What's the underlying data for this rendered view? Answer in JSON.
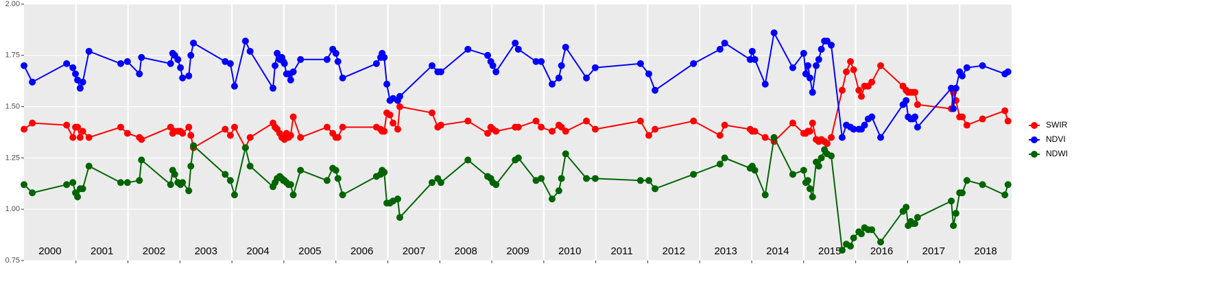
{
  "chart_data": {
    "type": "line",
    "xlim": [
      2000,
      2019
    ],
    "xticks": [
      2001,
      2002,
      2003,
      2004,
      2005,
      2006,
      2007,
      2008,
      2009,
      2010,
      2011,
      2012,
      2013,
      2014,
      2015,
      2016,
      2017,
      2018
    ],
    "year_labels": [
      "2000",
      "2001",
      "2002",
      "2003",
      "2004",
      "2005",
      "2006",
      "2007",
      "2008",
      "2009",
      "2010",
      "2011",
      "2012",
      "2013",
      "2014",
      "2015",
      "2016",
      "2017",
      "2018"
    ],
    "ylim": [
      0.75,
      2.0
    ],
    "yticks": [
      {
        "value": 0.75,
        "label": "0.75"
      },
      {
        "value": 1,
        "label": "1.00"
      },
      {
        "value": 1.25,
        "label": "1.25"
      },
      {
        "value": 1.5,
        "label": "1.50"
      },
      {
        "value": 1.75,
        "label": "1.75"
      },
      {
        "value": 2,
        "label": "2.00"
      }
    ],
    "grid": true,
    "legend": "right",
    "x": [
      2000.0,
      2000.16,
      2000.82,
      2000.94,
      2000.99,
      2001.03,
      2001.08,
      2001.13,
      2001.25,
      2001.86,
      2001.99,
      2002.22,
      2002.26,
      2002.82,
      2002.86,
      2002.9,
      2002.96,
      2003.01,
      2003.05,
      2003.17,
      2003.21,
      2003.26,
      2003.87,
      2003.97,
      2004.05,
      2004.26,
      2004.35,
      2004.79,
      2004.83,
      2004.87,
      2004.92,
      2004.96,
      2004.99,
      2005.01,
      2005.05,
      2005.09,
      2005.13,
      2005.18,
      2005.32,
      2005.83,
      2005.94,
      2006.0,
      2006.04,
      2006.13,
      2006.78,
      2006.86,
      2006.89,
      2006.93,
      2006.98,
      2007.04,
      2007.1,
      2007.19,
      2007.23,
      2007.85,
      2007.96,
      2008.02,
      2008.54,
      2008.92,
      2008.98,
      2009.02,
      2009.08,
      2009.45,
      2009.51,
      2009.85,
      2009.95,
      2010.16,
      2010.29,
      2010.34,
      2010.42,
      2010.82,
      2010.99,
      2011.86,
      2012.02,
      2012.14,
      2012.88,
      2013.39,
      2013.48,
      2013.97,
      2014.01,
      2014.06,
      2014.26,
      2014.43,
      2014.79,
      2015.0,
      2015.04,
      2015.08,
      2015.12,
      2015.17,
      2015.24,
      2015.29,
      2015.34,
      2015.4,
      2015.45,
      2015.53,
      2015.74,
      2015.82,
      2015.9,
      2015.96,
      2016.06,
      2016.11,
      2016.17,
      2016.24,
      2016.31,
      2016.48,
      2016.91,
      2016.97,
      2017.01,
      2017.06,
      2017.1,
      2017.14,
      2017.19,
      2017.84,
      2017.88,
      2017.93,
      2018.0,
      2018.05,
      2018.14,
      2018.44,
      2018.87,
      2018.93
    ],
    "series": [
      {
        "name": "SWIR",
        "color": "#ff0000",
        "values": [
          1.39,
          1.42,
          1.41,
          1.35,
          1.4,
          1.4,
          1.35,
          1.38,
          1.35,
          1.4,
          1.37,
          1.35,
          1.34,
          1.4,
          1.37,
          1.38,
          1.38,
          1.38,
          1.37,
          1.4,
          1.36,
          1.3,
          1.39,
          1.36,
          1.4,
          1.3,
          1.35,
          1.42,
          1.4,
          1.39,
          1.37,
          1.35,
          1.35,
          1.34,
          1.37,
          1.35,
          1.36,
          1.45,
          1.35,
          1.4,
          1.37,
          1.35,
          1.35,
          1.4,
          1.4,
          1.39,
          1.38,
          1.38,
          1.47,
          1.46,
          1.42,
          1.39,
          1.5,
          1.47,
          1.4,
          1.41,
          1.43,
          1.37,
          1.4,
          1.39,
          1.38,
          1.4,
          1.4,
          1.43,
          1.4,
          1.38,
          1.41,
          1.4,
          1.38,
          1.43,
          1.39,
          1.43,
          1.36,
          1.39,
          1.43,
          1.36,
          1.41,
          1.39,
          1.38,
          1.38,
          1.35,
          1.33,
          1.42,
          1.37,
          1.37,
          1.38,
          1.38,
          1.42,
          1.34,
          1.33,
          1.34,
          1.33,
          1.32,
          1.35,
          1.58,
          1.67,
          1.72,
          1.68,
          1.58,
          1.55,
          1.6,
          1.6,
          1.62,
          1.7,
          1.6,
          1.58,
          1.57,
          1.57,
          1.57,
          1.57,
          1.51,
          1.49,
          1.57,
          1.53,
          1.45,
          1.45,
          1.41,
          1.44,
          1.48,
          1.43
        ]
      },
      {
        "name": "NDVI",
        "color": "#0000ff",
        "values": [
          1.7,
          1.62,
          1.71,
          1.69,
          1.66,
          1.63,
          1.59,
          1.62,
          1.77,
          1.71,
          1.72,
          1.66,
          1.74,
          1.71,
          1.76,
          1.75,
          1.73,
          1.69,
          1.64,
          1.65,
          1.75,
          1.81,
          1.72,
          1.71,
          1.6,
          1.82,
          1.77,
          1.59,
          1.7,
          1.76,
          1.73,
          1.74,
          1.72,
          1.71,
          1.66,
          1.66,
          1.63,
          1.67,
          1.73,
          1.73,
          1.78,
          1.76,
          1.72,
          1.64,
          1.71,
          1.74,
          1.76,
          1.74,
          1.61,
          1.53,
          1.54,
          1.53,
          1.55,
          1.7,
          1.67,
          1.67,
          1.78,
          1.75,
          1.72,
          1.7,
          1.67,
          1.81,
          1.78,
          1.72,
          1.72,
          1.61,
          1.64,
          1.7,
          1.79,
          1.64,
          1.69,
          1.71,
          1.66,
          1.58,
          1.71,
          1.78,
          1.81,
          1.73,
          1.77,
          1.73,
          1.61,
          1.86,
          1.69,
          1.76,
          1.66,
          1.7,
          1.64,
          1.57,
          1.7,
          1.73,
          1.78,
          1.82,
          1.82,
          1.8,
          1.35,
          1.41,
          1.4,
          1.39,
          1.39,
          1.39,
          1.41,
          1.44,
          1.45,
          1.35,
          1.51,
          1.53,
          1.45,
          1.44,
          1.44,
          1.45,
          1.4,
          1.59,
          1.49,
          1.59,
          1.67,
          1.65,
          1.69,
          1.7,
          1.66,
          1.67
        ]
      },
      {
        "name": "NDWI",
        "color": "#006400",
        "values": [
          1.12,
          1.08,
          1.12,
          1.13,
          1.08,
          1.06,
          1.1,
          1.1,
          1.21,
          1.13,
          1.13,
          1.14,
          1.24,
          1.12,
          1.19,
          1.17,
          1.13,
          1.12,
          1.13,
          1.09,
          1.21,
          1.31,
          1.17,
          1.14,
          1.07,
          1.3,
          1.21,
          1.11,
          1.13,
          1.15,
          1.16,
          1.15,
          1.14,
          1.14,
          1.13,
          1.12,
          1.12,
          1.07,
          1.19,
          1.14,
          1.2,
          1.19,
          1.15,
          1.07,
          1.16,
          1.17,
          1.19,
          1.18,
          1.03,
          1.03,
          1.04,
          1.05,
          0.96,
          1.13,
          1.15,
          1.13,
          1.24,
          1.16,
          1.15,
          1.13,
          1.12,
          1.24,
          1.25,
          1.14,
          1.15,
          1.05,
          1.09,
          1.15,
          1.27,
          1.15,
          1.15,
          1.14,
          1.14,
          1.1,
          1.17,
          1.22,
          1.25,
          1.2,
          1.21,
          1.19,
          1.07,
          1.35,
          1.17,
          1.19,
          1.13,
          1.14,
          1.1,
          1.06,
          1.23,
          1.21,
          1.25,
          1.29,
          1.27,
          1.26,
          0.8,
          0.83,
          0.82,
          0.86,
          0.89,
          0.88,
          0.91,
          0.9,
          0.9,
          0.84,
          0.99,
          1.01,
          0.92,
          0.94,
          0.93,
          0.93,
          0.96,
          1.04,
          0.92,
          0.98,
          1.08,
          1.08,
          1.14,
          1.12,
          1.07,
          1.12
        ]
      }
    ]
  }
}
